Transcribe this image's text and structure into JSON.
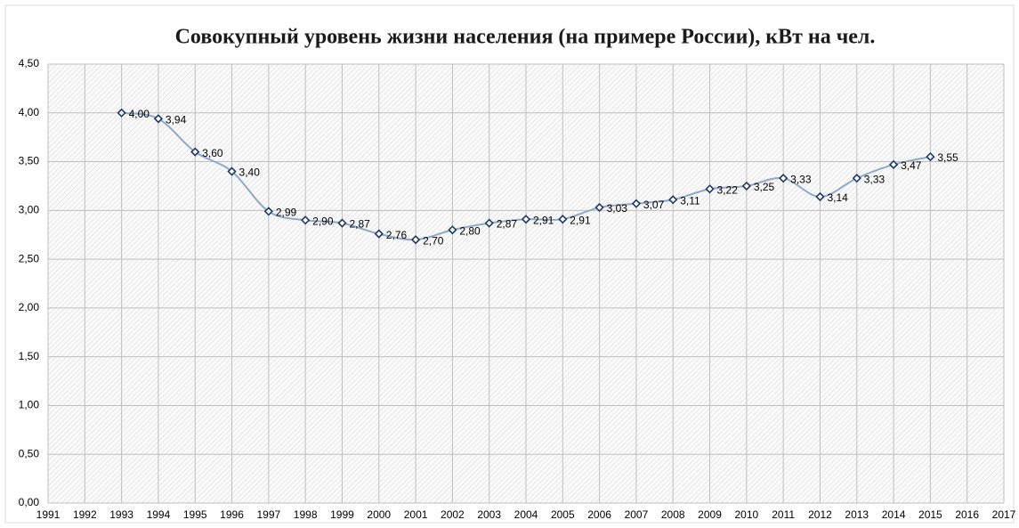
{
  "chart_data": {
    "type": "line",
    "title": "Совокупный уровень жизни населения (на примере России), кВт на чел.",
    "x": [
      1993,
      1994,
      1995,
      1996,
      1997,
      1998,
      1999,
      2000,
      2001,
      2002,
      2003,
      2004,
      2005,
      2006,
      2007,
      2008,
      2009,
      2010,
      2011,
      2012,
      2013,
      2014,
      2015
    ],
    "series": [
      {
        "name": "Совокупный уровень жизни",
        "color": "#8fa8c8",
        "marker_color": "#1f3864",
        "values": [
          4.0,
          3.94,
          3.6,
          3.4,
          2.99,
          2.9,
          2.87,
          2.76,
          2.7,
          2.8,
          2.87,
          2.91,
          2.91,
          3.03,
          3.07,
          3.11,
          3.22,
          3.25,
          3.33,
          3.14,
          3.33,
          3.47,
          3.55
        ],
        "value_labels": [
          "4,00",
          "3,94",
          "3,60",
          "3,40",
          "2,99",
          "2,90",
          "2,87",
          "2,76",
          "2,70",
          "2,80",
          "2,87",
          "2,91",
          "2,91",
          "3,03",
          "3,07",
          "3,11",
          "3,22",
          "3,25",
          "3,33",
          "3,14",
          "3,33",
          "3,47",
          "3,55"
        ]
      }
    ],
    "xlim": [
      1991,
      2017
    ],
    "xticks": [
      1991,
      1992,
      1993,
      1994,
      1995,
      1996,
      1997,
      1998,
      1999,
      2000,
      2001,
      2002,
      2003,
      2004,
      2005,
      2006,
      2007,
      2008,
      2009,
      2010,
      2011,
      2012,
      2013,
      2014,
      2015,
      2016,
      2017
    ],
    "ylim": [
      0,
      4.5
    ],
    "yticks": [
      {
        "value": 0,
        "label": "0,00"
      },
      {
        "value": 0.5,
        "label": "0,50"
      },
      {
        "value": 1,
        "label": "1,00"
      },
      {
        "value": 1.5,
        "label": "1,50"
      },
      {
        "value": 2,
        "label": "2,00"
      },
      {
        "value": 2.5,
        "label": "2,50"
      },
      {
        "value": 3,
        "label": "3,00"
      },
      {
        "value": 3.5,
        "label": "3,50"
      },
      {
        "value": 4,
        "label": "4,00"
      },
      {
        "value": 4.5,
        "label": "4,50"
      }
    ],
    "grid": true
  }
}
